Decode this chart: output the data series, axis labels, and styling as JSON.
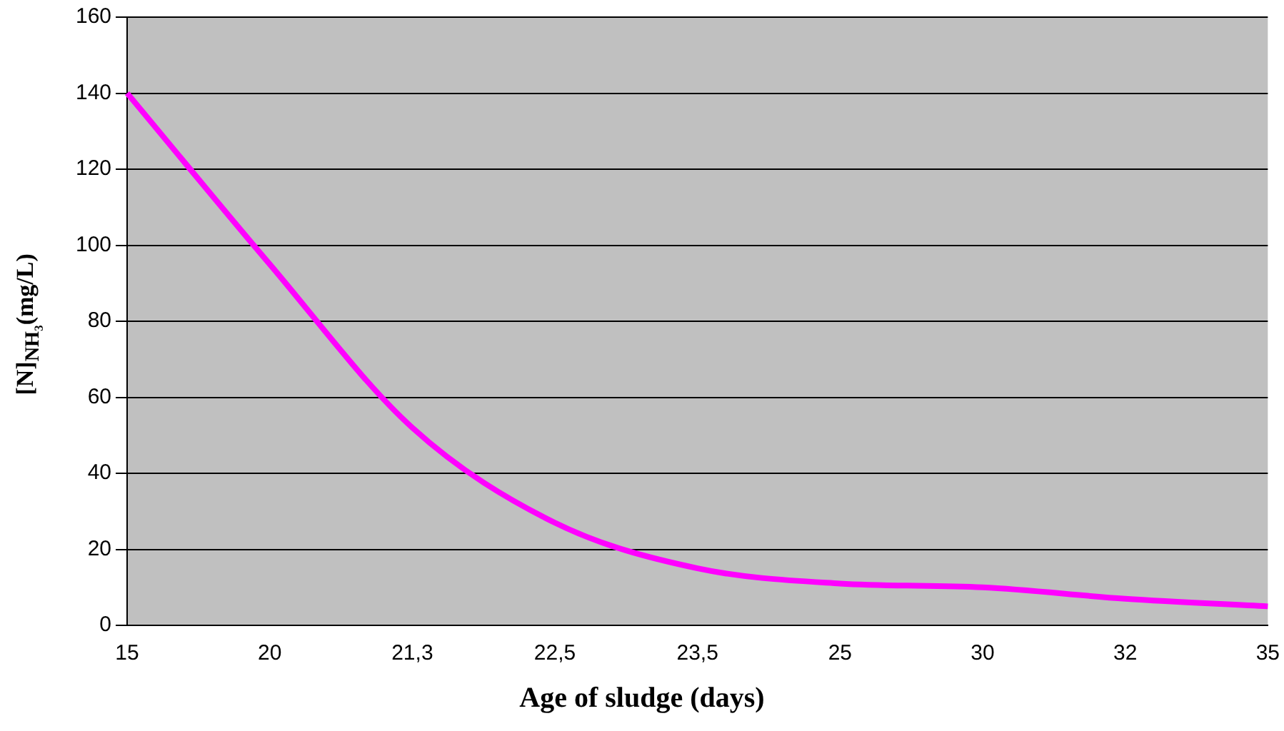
{
  "chart_data": {
    "type": "line",
    "xlabel": "Age of sludge (days)",
    "ylabel": "[N]$_{NH₃}$(mg/L)",
    "categories": [
      "15",
      "20",
      "21,3",
      "22,5",
      "23,5",
      "25",
      "30",
      "32",
      "35"
    ],
    "series": [
      {
        "color": "#ff00ff",
        "values": [
          140,
          95,
          52,
          27,
          15,
          11,
          10,
          7,
          5
        ]
      }
    ],
    "ylim": [
      0,
      160
    ],
    "yticks": [
      0,
      20,
      40,
      60,
      80,
      100,
      120,
      140,
      160
    ],
    "grid": "y",
    "legend": false,
    "marker": "none",
    "line_style": "solid"
  }
}
